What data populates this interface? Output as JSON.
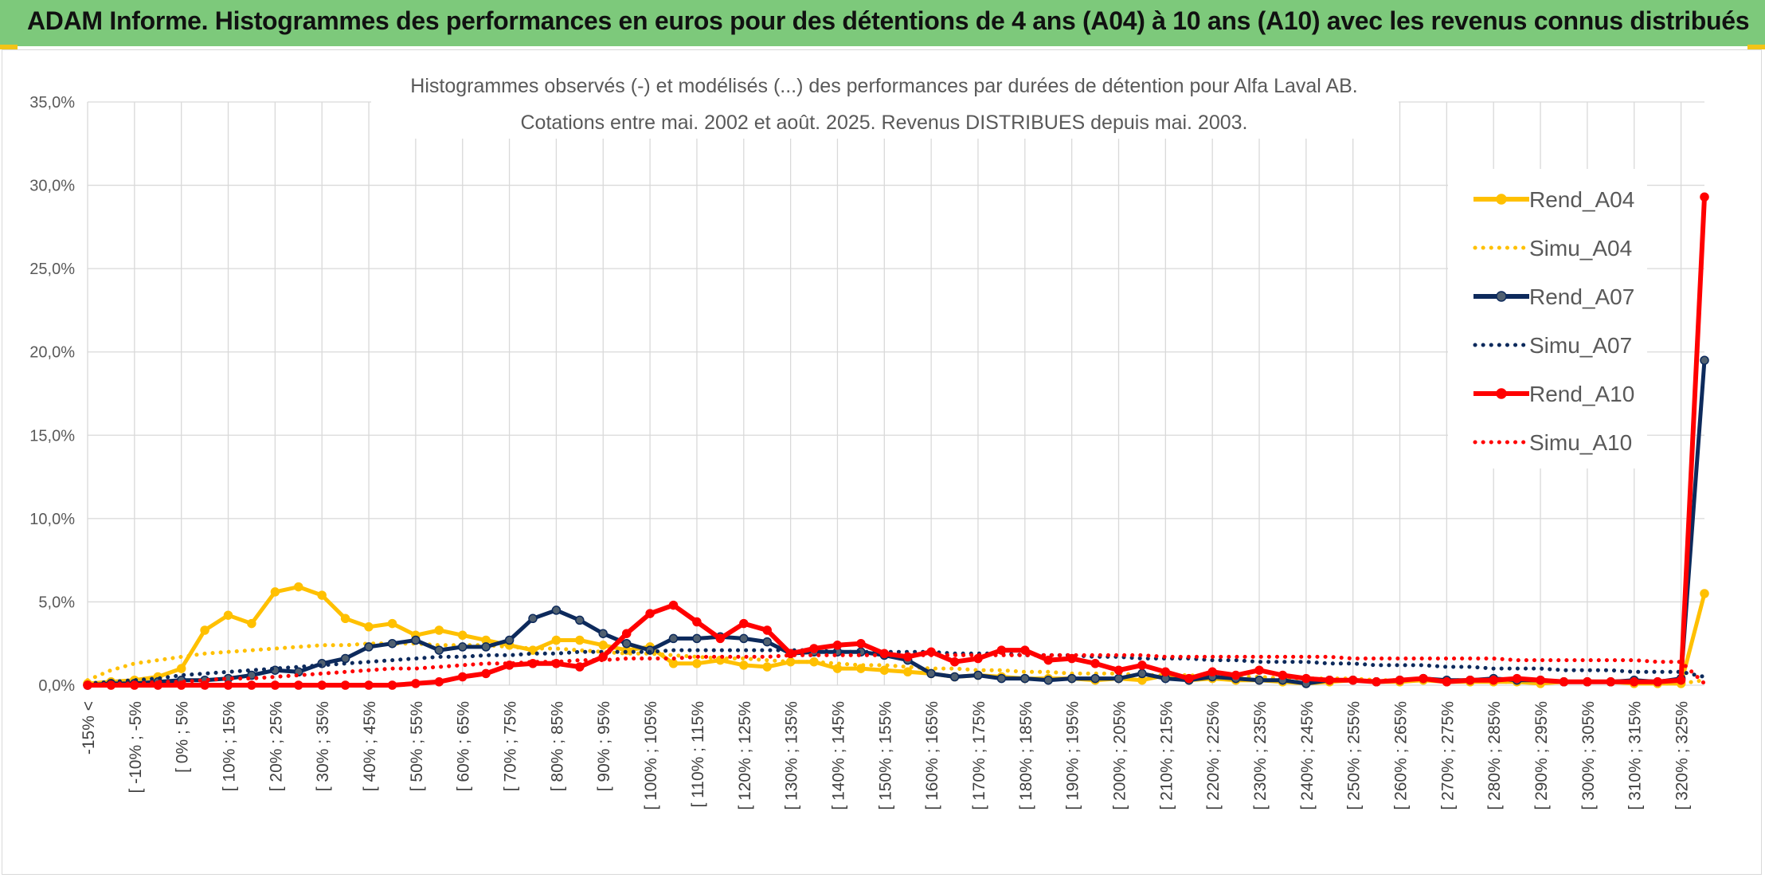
{
  "header": {
    "title": "ADAM Informe. Histogrammes des performances en euros pour des détentions de 4 ans (A04) à 10 ans (A10) avec les revenus connus distribués"
  },
  "colors": {
    "header_bg": "#7dc97b",
    "A04": "#ffc000",
    "A07": "#0d2a5c",
    "A10": "#ff0000",
    "grid": "#d9d9d9"
  },
  "chart_data": {
    "type": "line",
    "title": "Histogrammes observés (-) et modélisés (...) des performances par durées de détention pour Alfa Laval AB.",
    "subtitle": "Cotations entre mai. 2002 et août. 2025. Revenus DISTRIBUES depuis mai. 2003.",
    "y_ticks": [
      "0,0%",
      "5,0%",
      "10,0%",
      "15,0%",
      "20,0%",
      "25,0%",
      "30,0%",
      "35,0%"
    ],
    "ylim": [
      0,
      35
    ],
    "grid": true,
    "legend_position": "right",
    "x_tick_labels": [
      "-15% <",
      "[ -10% ; -5%",
      "[ 0% ; 5%",
      "[ 10% ; 15%",
      "[ 20% ; 25%",
      "[ 30% ; 35%",
      "[ 40% ; 45%",
      "[ 50% ; 55%",
      "[ 60% ; 65%",
      "[ 70% ; 75%",
      "[ 80% ; 85%",
      "[ 90% ; 95%",
      "[ 100% ; 105%",
      "[ 110% ; 115%",
      "[ 120% ; 125%",
      "[ 130% ; 135%",
      "[ 140% ; 145%",
      "[ 150% ; 155%",
      "[ 160% ; 165%",
      "[ 170% ; 175%",
      "[ 180% ; 185%",
      "[ 190% ; 195%",
      "[ 200% ; 205%",
      "[ 210% ; 215%",
      "[ 220% ; 225%",
      "[ 230% ; 235%",
      "[ 240% ; 245%",
      "[ 250% ; 255%",
      "[ 260% ; 265%",
      "[ 270% ; 275%",
      "[ 280% ; 285%",
      "[ 290% ; 295%",
      "[ 300% ; 305%",
      "[ 310% ; 315%",
      "[ 320% ; 325%"
    ],
    "series": [
      {
        "name": "Rend_A04",
        "style": "solid",
        "color": "#ffc000",
        "values": [
          0.1,
          0.2,
          0.3,
          0.5,
          1.0,
          3.3,
          4.2,
          3.7,
          5.6,
          5.9,
          5.4,
          4.0,
          3.5,
          3.7,
          3.0,
          3.3,
          3.0,
          2.7,
          2.4,
          2.1,
          2.7,
          2.7,
          2.4,
          2.1,
          2.3,
          1.3,
          1.3,
          1.5,
          1.2,
          1.1,
          1.4,
          1.4,
          1.0,
          1.0,
          0.9,
          0.8,
          0.7,
          0.5,
          0.6,
          0.5,
          0.4,
          0.4,
          0.4,
          0.3,
          0.4,
          0.3,
          0.6,
          0.3,
          0.4,
          0.3,
          0.3,
          0.2,
          0.1,
          0.2,
          0.3,
          0.2,
          0.2,
          0.3,
          0.2,
          0.2,
          0.2,
          0.2,
          0.1,
          0.2,
          0.2,
          0.2,
          0.1,
          0.1,
          0.1,
          5.5
        ]
      },
      {
        "name": "Simu_A04",
        "style": "dotted",
        "color": "#ffc000",
        "values": [
          0.3,
          0.9,
          1.3,
          1.5,
          1.7,
          1.9,
          2.0,
          2.1,
          2.2,
          2.3,
          2.4,
          2.4,
          2.5,
          2.5,
          2.5,
          2.4,
          2.4,
          2.4,
          2.3,
          2.2,
          2.2,
          2.1,
          2.0,
          1.9,
          1.9,
          1.8,
          1.7,
          1.6,
          1.6,
          1.5,
          1.4,
          1.4,
          1.3,
          1.2,
          1.2,
          1.1,
          1.0,
          1.0,
          0.9,
          0.9,
          0.8,
          0.8,
          0.7,
          0.7,
          0.7,
          0.6,
          0.6,
          0.6,
          0.5,
          0.5,
          0.5,
          0.4,
          0.4,
          0.4,
          0.4,
          0.3,
          0.3,
          0.3,
          0.3,
          0.3,
          0.2,
          0.2,
          0.2,
          0.2,
          0.2,
          0.2,
          0.2,
          0.1,
          0.1,
          0.3
        ]
      },
      {
        "name": "Rend_A07",
        "style": "solid",
        "color": "#0d2a5c",
        "values": [
          0.0,
          0.1,
          0.1,
          0.2,
          0.3,
          0.3,
          0.4,
          0.6,
          0.9,
          0.8,
          1.3,
          1.6,
          2.3,
          2.5,
          2.7,
          2.1,
          2.3,
          2.3,
          2.7,
          4.0,
          4.5,
          3.9,
          3.1,
          2.5,
          2.1,
          2.8,
          2.8,
          2.9,
          2.8,
          2.6,
          1.9,
          2.0,
          2.0,
          2.0,
          1.8,
          1.5,
          0.7,
          0.5,
          0.6,
          0.4,
          0.4,
          0.3,
          0.4,
          0.4,
          0.4,
          0.7,
          0.4,
          0.3,
          0.5,
          0.4,
          0.3,
          0.3,
          0.1,
          0.3,
          0.3,
          0.2,
          0.3,
          0.4,
          0.3,
          0.3,
          0.4,
          0.3,
          0.3,
          0.2,
          0.2,
          0.2,
          0.3,
          0.2,
          0.4,
          19.5
        ]
      },
      {
        "name": "Simu_A07",
        "style": "dotted",
        "color": "#0d2a5c",
        "values": [
          0.1,
          0.2,
          0.3,
          0.4,
          0.6,
          0.7,
          0.8,
          0.9,
          1.0,
          1.1,
          1.2,
          1.3,
          1.4,
          1.5,
          1.6,
          1.7,
          1.7,
          1.8,
          1.8,
          1.9,
          1.9,
          2.0,
          2.0,
          2.0,
          2.0,
          2.1,
          2.1,
          2.1,
          2.1,
          2.1,
          2.1,
          2.1,
          2.0,
          2.0,
          2.0,
          2.0,
          2.0,
          1.9,
          1.9,
          1.9,
          1.8,
          1.8,
          1.8,
          1.7,
          1.7,
          1.6,
          1.6,
          1.6,
          1.5,
          1.5,
          1.4,
          1.4,
          1.4,
          1.3,
          1.3,
          1.2,
          1.2,
          1.2,
          1.1,
          1.1,
          1.0,
          1.0,
          1.0,
          0.9,
          0.9,
          0.9,
          0.8,
          0.8,
          0.8,
          0.5
        ]
      },
      {
        "name": "Rend_A10",
        "style": "solid",
        "color": "#ff0000",
        "values": [
          0.0,
          0.0,
          0.0,
          0.0,
          0.0,
          0.0,
          0.0,
          0.0,
          0.0,
          0.0,
          0.0,
          0.0,
          0.0,
          0.0,
          0.1,
          0.2,
          0.5,
          0.7,
          1.2,
          1.3,
          1.3,
          1.1,
          1.7,
          3.1,
          4.3,
          4.8,
          3.8,
          2.8,
          3.7,
          3.3,
          1.9,
          2.2,
          2.4,
          2.5,
          1.9,
          1.7,
          2.0,
          1.4,
          1.6,
          2.1,
          2.1,
          1.5,
          1.6,
          1.3,
          0.9,
          1.2,
          0.8,
          0.4,
          0.8,
          0.6,
          0.9,
          0.6,
          0.4,
          0.3,
          0.3,
          0.2,
          0.3,
          0.4,
          0.2,
          0.3,
          0.3,
          0.4,
          0.3,
          0.2,
          0.2,
          0.2,
          0.2,
          0.2,
          0.3,
          29.3
        ]
      },
      {
        "name": "Simu_A10",
        "style": "dotted",
        "color": "#ff0000",
        "values": [
          0.0,
          0.1,
          0.1,
          0.2,
          0.2,
          0.3,
          0.4,
          0.4,
          0.5,
          0.6,
          0.7,
          0.8,
          0.9,
          1.0,
          1.0,
          1.1,
          1.2,
          1.3,
          1.3,
          1.4,
          1.4,
          1.5,
          1.5,
          1.6,
          1.6,
          1.6,
          1.7,
          1.7,
          1.7,
          1.7,
          1.8,
          1.8,
          1.8,
          1.8,
          1.8,
          1.8,
          1.8,
          1.8,
          1.8,
          1.8,
          1.8,
          1.8,
          1.8,
          1.8,
          1.8,
          1.8,
          1.7,
          1.7,
          1.7,
          1.7,
          1.7,
          1.7,
          1.7,
          1.7,
          1.6,
          1.6,
          1.6,
          1.6,
          1.6,
          1.6,
          1.6,
          1.5,
          1.5,
          1.5,
          1.5,
          1.5,
          1.5,
          1.4,
          1.4,
          0.1
        ]
      }
    ]
  }
}
